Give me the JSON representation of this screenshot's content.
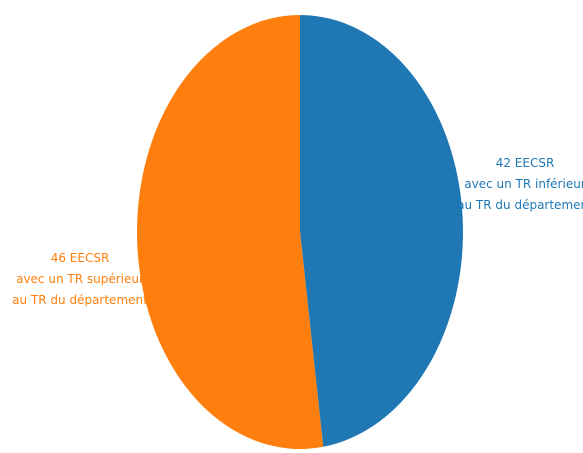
{
  "chart_data": {
    "type": "pie",
    "title": "",
    "slices": [
      {
        "value": 42,
        "color": "#1f77b4",
        "label_lines": [
          "42 EECSR",
          "avec un TR inférieur",
          "au TR du département"
        ]
      },
      {
        "value": 46,
        "color": "#ff7f0e",
        "label_lines": [
          "46 EECSR",
          "avec un TR supérieur",
          "au TR du département"
        ]
      }
    ],
    "start": "top",
    "direction": "clockwise",
    "legend": "none"
  }
}
